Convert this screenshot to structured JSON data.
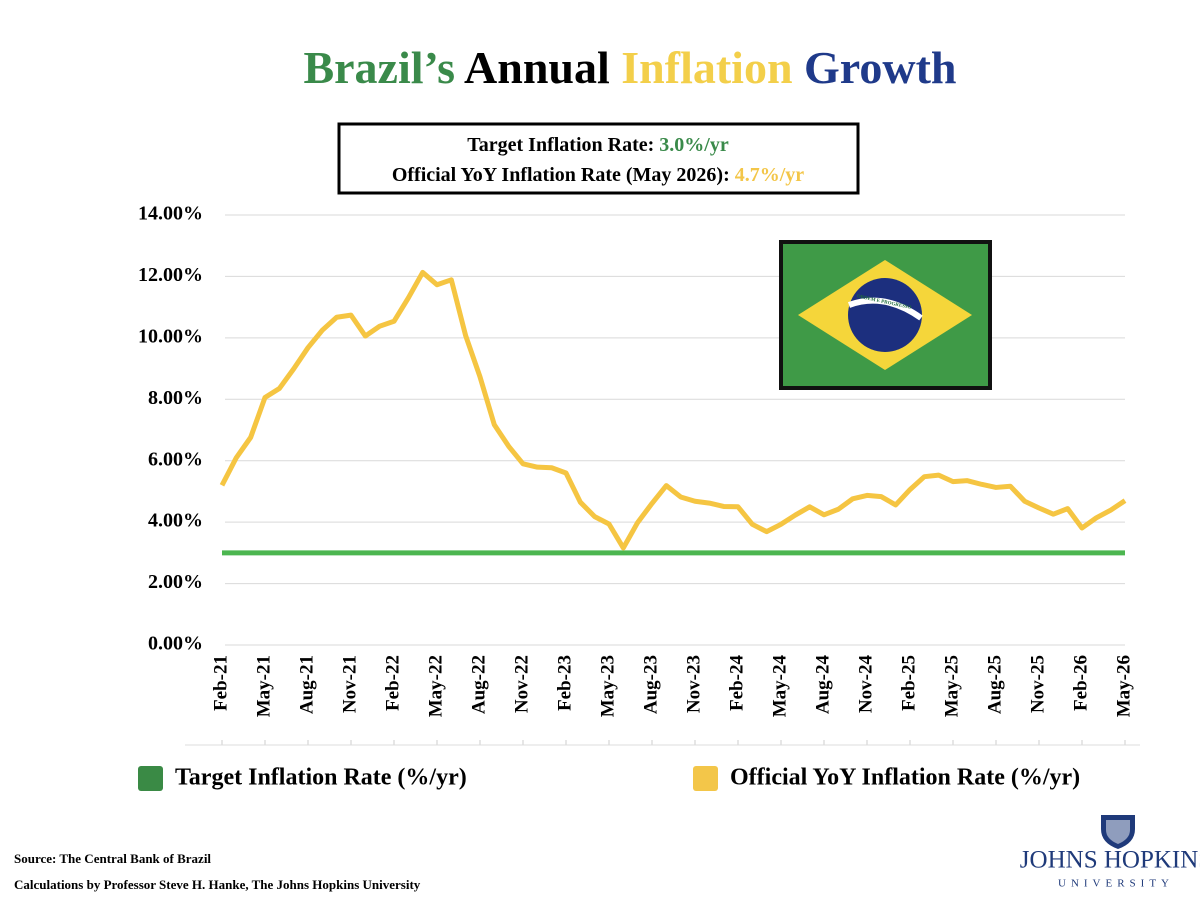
{
  "chart_data": {
    "type": "line",
    "title": [
      {
        "text": "Brazil’s",
        "color": "#3a8a4a"
      },
      {
        "text": "Annual",
        "color": "#000000"
      },
      {
        "text": "Inflation",
        "color": "#f3cf4a"
      },
      {
        "text": "Growth",
        "color": "#1f3a8a"
      }
    ],
    "annotations": [
      {
        "label": "Target Inflation Rate:",
        "value_text": "3.0%/yr",
        "color": "#3a8a4a"
      },
      {
        "label": "Official YoY Inflation Rate (May 2026):",
        "value_text": "4.7%/yr",
        "color": "#f3c649"
      }
    ],
    "categories": [
      "Feb-21",
      null,
      null,
      "May-21",
      null,
      null,
      "Aug-21",
      null,
      null,
      "Nov-21",
      null,
      null,
      "Feb-22",
      null,
      null,
      "May-22",
      null,
      null,
      "Aug-22",
      null,
      null,
      "Nov-22",
      null,
      null,
      "Feb-23",
      null,
      null,
      "May-23",
      null,
      null,
      "Aug-23",
      null,
      null,
      "Nov-23",
      null,
      null,
      "Feb-24",
      null,
      null,
      "May-24",
      null,
      null,
      "Aug-24",
      null,
      null,
      "Nov-24",
      null,
      null,
      "Feb-25",
      null,
      null,
      "May-25",
      null,
      null,
      "Aug-25",
      null,
      null,
      "Nov-25",
      null,
      null,
      "Feb-26",
      null,
      null,
      "May-26"
    ],
    "series": [
      {
        "name": "Target Inflation Rate (%/yr)",
        "color": "#4cb650",
        "legend_color": "#3a8a45",
        "values": [
          3,
          3,
          3,
          3,
          3,
          3,
          3,
          3,
          3,
          3,
          3,
          3,
          3,
          3,
          3,
          3,
          3,
          3,
          3,
          3,
          3,
          3,
          3,
          3,
          3,
          3,
          3,
          3,
          3,
          3,
          3,
          3,
          3,
          3,
          3,
          3,
          3,
          3,
          3,
          3,
          3,
          3,
          3,
          3,
          3,
          3,
          3,
          3,
          3,
          3,
          3,
          3,
          3,
          3,
          3,
          3,
          3,
          3,
          3,
          3,
          3,
          3,
          3,
          3
        ]
      },
      {
        "name": "Official YoY Inflation Rate (%/yr)",
        "color": "#f5c542",
        "legend_color": "#f3c649",
        "values": [
          5.2,
          6.1,
          6.76,
          8.06,
          8.35,
          8.99,
          9.68,
          10.25,
          10.67,
          10.74,
          10.06,
          10.38,
          10.54,
          11.3,
          12.13,
          11.73,
          11.89,
          10.07,
          8.73,
          7.17,
          6.47,
          5.9,
          5.79,
          5.77,
          5.6,
          4.65,
          4.18,
          3.94,
          3.16,
          3.99,
          4.61,
          5.19,
          4.82,
          4.68,
          4.62,
          4.51,
          4.5,
          3.93,
          3.69,
          3.93,
          4.23,
          4.5,
          4.24,
          4.42,
          4.76,
          4.87,
          4.83,
          4.56,
          5.06,
          5.48,
          5.53,
          5.32,
          5.35,
          5.23,
          5.13,
          5.17,
          4.68,
          4.46,
          4.26,
          4.44,
          3.81,
          4.14,
          4.39,
          4.7
        ]
      }
    ],
    "ylim": [
      0,
      14
    ],
    "yticks": [
      {
        "value": 0,
        "label": "0.00%"
      },
      {
        "value": 2,
        "label": "2.00%"
      },
      {
        "value": 4,
        "label": "4.00%"
      },
      {
        "value": 6,
        "label": "6.00%"
      },
      {
        "value": 8,
        "label": "8.00%"
      },
      {
        "value": 10,
        "label": "10.00%"
      },
      {
        "value": 12,
        "label": "12.00%"
      },
      {
        "value": 14,
        "label": "14.00%"
      }
    ],
    "grid": true,
    "flag_motto": "ORDEM E PROGRESSO",
    "sources": [
      "Source: The Central Bank of Brazil",
      "Calculations by Professor Steve H. Hanke, The Johns Hopkins University"
    ],
    "logo": {
      "name": "JOHNS HOPKINS",
      "sub": "UNIVERSITY"
    }
  }
}
